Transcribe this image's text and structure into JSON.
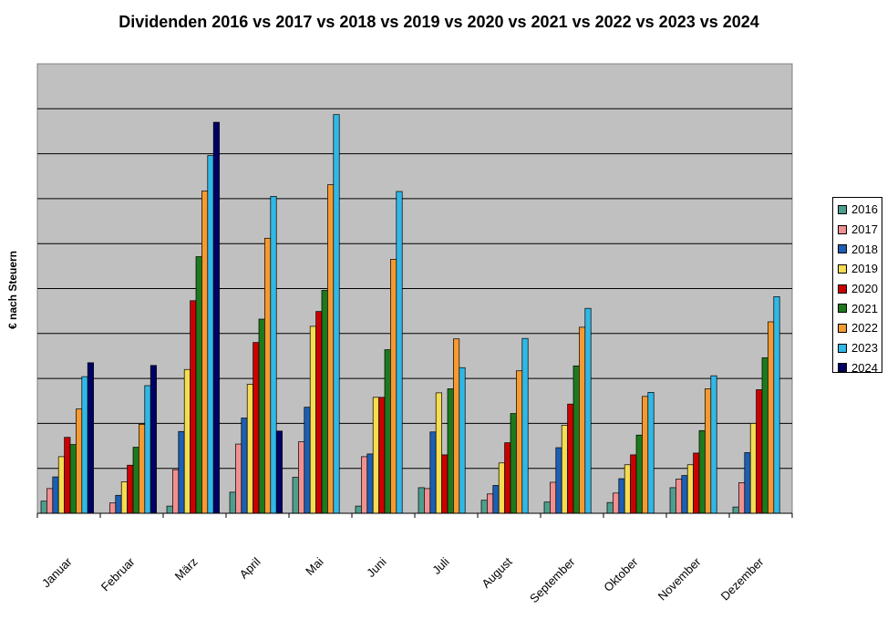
{
  "chart_data": {
    "type": "bar",
    "title": "Dividenden 2016 vs 2017 vs 2018 vs 2019 vs 2020 vs 2021 vs 2022 vs 2023 vs 2024",
    "xlabel": "",
    "ylabel": "€ nach Steuern",
    "ylim": [
      0,
      10
    ],
    "grid": true,
    "legend_position": "right",
    "plot_background": "#c0c0c0",
    "categories": [
      "Januar",
      "Februar",
      "März",
      "April",
      "Mai",
      "Juni",
      "Juli",
      "August",
      "September",
      "Oktober",
      "November",
      "Dezember"
    ],
    "series": [
      {
        "name": "2016",
        "color": "#4e9e8e",
        "values": [
          0.27,
          0,
          0.16,
          0.47,
          0.8,
          0.16,
          0.57,
          0.29,
          0.25,
          0.24,
          0.57,
          0.14
        ]
      },
      {
        "name": "2017",
        "color": "#f09090",
        "values": [
          0.55,
          0.23,
          0.97,
          1.54,
          1.59,
          1.26,
          0.55,
          0.43,
          0.69,
          0.45,
          0.76,
          0.68
        ]
      },
      {
        "name": "2018",
        "color": "#1c5fb4",
        "values": [
          0.81,
          0.4,
          1.82,
          2.12,
          2.36,
          1.32,
          1.81,
          0.62,
          1.46,
          0.77,
          0.84,
          1.35
        ]
      },
      {
        "name": "2019",
        "color": "#f5dc50",
        "values": [
          1.26,
          0.7,
          3.2,
          2.87,
          4.16,
          2.58,
          2.68,
          1.12,
          1.96,
          1.08,
          1.08,
          2.0
        ]
      },
      {
        "name": "2020",
        "color": "#cc0000",
        "values": [
          1.69,
          1.07,
          4.73,
          3.8,
          4.49,
          2.58,
          1.3,
          1.57,
          2.43,
          1.3,
          1.34,
          2.75
        ]
      },
      {
        "name": "2021",
        "color": "#1c7a1c",
        "values": [
          1.53,
          1.47,
          5.71,
          4.32,
          4.96,
          3.64,
          2.77,
          2.22,
          3.28,
          1.74,
          1.84,
          3.46
        ]
      },
      {
        "name": "2022",
        "color": "#f59a32",
        "values": [
          2.32,
          1.98,
          7.17,
          6.12,
          7.31,
          5.65,
          3.88,
          3.17,
          4.14,
          2.6,
          2.77,
          4.26
        ]
      },
      {
        "name": "2023",
        "color": "#30b8e6",
        "values": [
          3.04,
          2.84,
          7.96,
          7.05,
          8.87,
          7.16,
          3.24,
          3.89,
          4.56,
          2.69,
          3.06,
          4.82
        ]
      },
      {
        "name": "2024",
        "color": "#000066",
        "values": [
          3.35,
          3.29,
          8.7,
          1.83,
          null,
          null,
          null,
          null,
          null,
          null,
          null,
          null
        ]
      }
    ]
  }
}
